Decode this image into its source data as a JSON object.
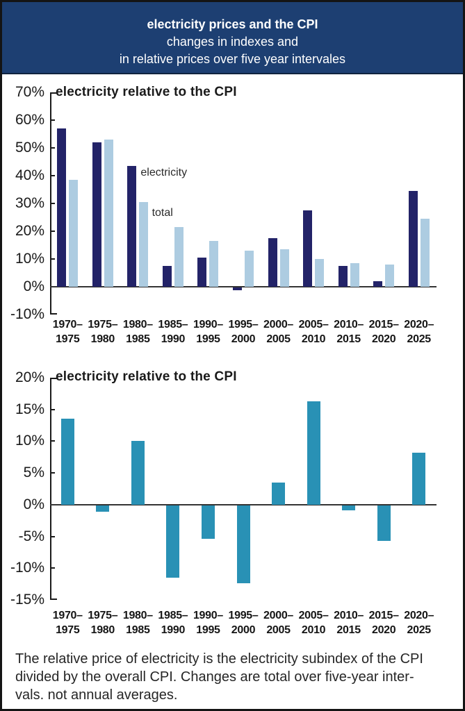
{
  "header": {
    "title": "electricity prices and the CPI",
    "subtitle_line1": "changes in indexes and",
    "subtitle_line2": "in relative prices over five year intervales",
    "background": "#1d3f72",
    "text_color": "#ffffff"
  },
  "footer": {
    "lines": [
      "The relative price of electricity is the electricity subindex of the CPI",
      "divided by the overall CPI. Changes are total over five-year inter-",
      "vals. not annual averages."
    ]
  },
  "chart_data": [
    {
      "type": "bar",
      "title": "electricity relative to the CPI",
      "categories": [
        "1970–\n1975",
        "1975–\n1980",
        "1980–\n1985",
        "1985–\n1990",
        "1990–\n1995",
        "1995–\n2000",
        "2000–\n2005",
        "2005–\n2010",
        "2010–\n2015",
        "2015–\n2020",
        "2020–\n2025"
      ],
      "series": [
        {
          "name": "electricity",
          "color": "#232368",
          "values": [
            57,
            52,
            43.5,
            7.5,
            10.5,
            -1,
            17.5,
            27.5,
            7.5,
            2,
            34.5
          ]
        },
        {
          "name": "total",
          "color": "#adcce1",
          "values": [
            38.5,
            53,
            30.5,
            21.5,
            16.5,
            13,
            13.5,
            10,
            8.5,
            8,
            24.5
          ]
        }
      ],
      "ylim": [
        -10,
        70
      ],
      "yticks": [
        {
          "label": "70%",
          "value": 70
        },
        {
          "label": "60%",
          "value": 60
        },
        {
          "label": "50%",
          "value": 50
        },
        {
          "label": "40%",
          "value": 40
        },
        {
          "label": "30%",
          "value": 30
        },
        {
          "label": "20%",
          "value": 20
        },
        {
          "label": "10%",
          "value": 10
        },
        {
          "label": "0%",
          "value": 0
        },
        {
          "label": "-10%",
          "value": -10
        }
      ],
      "annotations": [
        {
          "text": "electricity",
          "x_index": 2.58,
          "y_value": 41
        },
        {
          "text": "total",
          "x_index": 2.9,
          "y_value": 26.5
        }
      ],
      "grid": false,
      "legend_position": "inline-annotations"
    },
    {
      "type": "bar",
      "title": "electricity relative to the CPI",
      "categories": [
        "1970–\n1975",
        "1975–\n1980",
        "1980–\n1985",
        "1985–\n1990",
        "1990–\n1995",
        "1995–\n2000",
        "2000–\n2005",
        "2005–\n2010",
        "2010–\n2015",
        "2015–\n2020",
        "2020–\n2025"
      ],
      "series": [
        {
          "name": "electricity relative to the CPI",
          "color": "#2991b5",
          "values": [
            13.5,
            -1,
            10,
            -11.4,
            -5.3,
            -12.3,
            3.5,
            16.3,
            -0.8,
            -5.6,
            8.2
          ]
        }
      ],
      "ylim": [
        -15,
        20
      ],
      "yticks": [
        {
          "label": "20%",
          "value": 20
        },
        {
          "label": "15%",
          "value": 15
        },
        {
          "label": "10%",
          "value": 10
        },
        {
          "label": "5%",
          "value": 5
        },
        {
          "label": "0%",
          "value": 0
        },
        {
          "label": "-5%",
          "value": -5
        },
        {
          "label": "-10%",
          "value": -10
        },
        {
          "label": "-15%",
          "value": -15
        }
      ],
      "annotations": [],
      "grid": false,
      "legend_position": "none"
    }
  ]
}
